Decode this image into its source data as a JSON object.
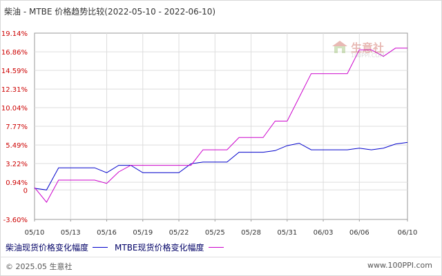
{
  "title": {
    "text": "柴油 - MTBE 价格趋势比较",
    "range": "(2022-05-10 - 2022-06-10)"
  },
  "legend": {
    "items": [
      {
        "label": "柴油现货价格变化幅度",
        "color": "#0000cc"
      },
      {
        "label": "MTBE现货价格变化幅度",
        "color": "#cc00cc"
      }
    ]
  },
  "watermark": {
    "brand": "生意社",
    "url": "100PPI.COM"
  },
  "footer": {
    "copyright": "© 2025.05 生意社",
    "site": "www.100PPI.com"
  },
  "chart_data": {
    "type": "line",
    "title": "柴油 - MTBE 价格趋势比较",
    "xlabel": "",
    "ylabel": "",
    "y_unit": "%",
    "ylim": [
      -3.6,
      19.14
    ],
    "grid": true,
    "legend_position": "bottom",
    "y_ticks": [
      "19.14%",
      "16.86%",
      "14.59%",
      "12.31%",
      "10.04%",
      "7.77%",
      "5.49%",
      "3.22%",
      "0.94%",
      "0",
      "-3.60%"
    ],
    "y_tick_values": [
      19.14,
      16.86,
      14.59,
      12.31,
      10.04,
      7.77,
      5.49,
      3.22,
      0.94,
      0,
      -3.6
    ],
    "x_ticks": [
      "05/10",
      "05/13",
      "05/16",
      "05/19",
      "05/22",
      "05/25",
      "05/28",
      "05/31",
      "06/03",
      "06/06",
      "06/10"
    ],
    "x_range": [
      "2022-05-10",
      "2022-06-10"
    ],
    "series": [
      {
        "name": "柴油现货价格变化幅度",
        "color": "#0000cc",
        "points": [
          [
            "2022-05-10",
            0.2
          ],
          [
            "2022-05-11",
            0.0
          ],
          [
            "2022-05-12",
            2.7
          ],
          [
            "2022-05-13",
            2.7
          ],
          [
            "2022-05-14",
            2.7
          ],
          [
            "2022-05-15",
            2.7
          ],
          [
            "2022-05-16",
            2.1
          ],
          [
            "2022-05-17",
            3.0
          ],
          [
            "2022-05-18",
            3.0
          ],
          [
            "2022-05-19",
            2.1
          ],
          [
            "2022-05-20",
            2.1
          ],
          [
            "2022-05-21",
            2.1
          ],
          [
            "2022-05-22",
            2.1
          ],
          [
            "2022-05-23",
            3.2
          ],
          [
            "2022-05-24",
            3.4
          ],
          [
            "2022-05-25",
            3.4
          ],
          [
            "2022-05-26",
            3.4
          ],
          [
            "2022-05-27",
            4.6
          ],
          [
            "2022-05-28",
            4.6
          ],
          [
            "2022-05-29",
            4.6
          ],
          [
            "2022-05-30",
            4.8
          ],
          [
            "2022-05-31",
            5.4
          ],
          [
            "2022-06-01",
            5.7
          ],
          [
            "2022-06-02",
            4.9
          ],
          [
            "2022-06-03",
            4.9
          ],
          [
            "2022-06-04",
            4.9
          ],
          [
            "2022-06-05",
            4.9
          ],
          [
            "2022-06-06",
            5.1
          ],
          [
            "2022-06-07",
            4.9
          ],
          [
            "2022-06-08",
            5.1
          ],
          [
            "2022-06-09",
            5.6
          ],
          [
            "2022-06-10",
            5.8
          ]
        ]
      },
      {
        "name": "MTBE现货价格变化幅度",
        "color": "#cc00cc",
        "points": [
          [
            "2022-05-10",
            0.3
          ],
          [
            "2022-05-11",
            -1.5
          ],
          [
            "2022-05-12",
            1.2
          ],
          [
            "2022-05-13",
            1.2
          ],
          [
            "2022-05-14",
            1.2
          ],
          [
            "2022-05-15",
            1.2
          ],
          [
            "2022-05-16",
            0.8
          ],
          [
            "2022-05-17",
            2.2
          ],
          [
            "2022-05-18",
            3.0
          ],
          [
            "2022-05-19",
            3.0
          ],
          [
            "2022-05-20",
            3.0
          ],
          [
            "2022-05-21",
            3.0
          ],
          [
            "2022-05-22",
            3.0
          ],
          [
            "2022-05-23",
            3.0
          ],
          [
            "2022-05-24",
            4.9
          ],
          [
            "2022-05-25",
            4.9
          ],
          [
            "2022-05-26",
            4.9
          ],
          [
            "2022-05-27",
            6.4
          ],
          [
            "2022-05-28",
            6.4
          ],
          [
            "2022-05-29",
            6.4
          ],
          [
            "2022-05-30",
            8.4
          ],
          [
            "2022-05-31",
            8.4
          ],
          [
            "2022-06-01",
            11.3
          ],
          [
            "2022-06-02",
            14.2
          ],
          [
            "2022-06-03",
            14.2
          ],
          [
            "2022-06-04",
            14.2
          ],
          [
            "2022-06-05",
            14.2
          ],
          [
            "2022-06-06",
            17.1
          ],
          [
            "2022-06-07",
            17.1
          ],
          [
            "2022-06-08",
            16.3
          ],
          [
            "2022-06-09",
            17.3
          ],
          [
            "2022-06-10",
            17.3
          ]
        ]
      }
    ]
  }
}
